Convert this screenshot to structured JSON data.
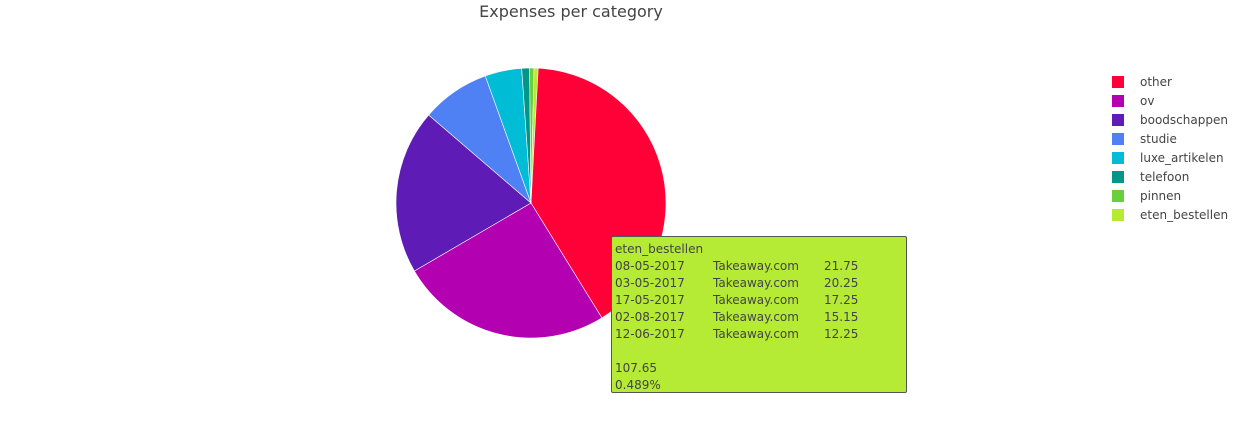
{
  "chart_data": {
    "type": "pie",
    "title": "Expenses per category",
    "series": [
      {
        "name": "other",
        "percent": 41.2,
        "color": "#ff0037"
      },
      {
        "name": "ov",
        "percent": 25.4,
        "color": "#b300b0"
      },
      {
        "name": "boodschappen",
        "percent": 19.7,
        "color": "#5e1bb5"
      },
      {
        "name": "studie",
        "percent": 8.2,
        "color": "#5081f4"
      },
      {
        "name": "luxe_artikelen",
        "percent": 4.4,
        "color": "#00bcd4"
      },
      {
        "name": "telefoon",
        "percent": 0.93,
        "color": "#009688"
      },
      {
        "name": "pinnen",
        "percent": 0.53,
        "color": "#6bce3c"
      },
      {
        "name": "eten_bestellen",
        "percent": 0.489,
        "color": "#b5ea35"
      }
    ],
    "legend_position": "right"
  },
  "tooltip": {
    "category": "eten_bestellen",
    "rows": [
      {
        "date": "08-05-2017",
        "merchant": "Takeaway.com",
        "amount": "21.75"
      },
      {
        "date": "03-05-2017",
        "merchant": "Takeaway.com",
        "amount": "20.25"
      },
      {
        "date": "17-05-2017",
        "merchant": "Takeaway.com",
        "amount": "17.25"
      },
      {
        "date": "02-08-2017",
        "merchant": "Takeaway.com",
        "amount": "15.15"
      },
      {
        "date": "12-06-2017",
        "merchant": "Takeaway.com",
        "amount": "12.25"
      }
    ],
    "total": "107.65",
    "percent": "0.489%",
    "background_color": "#b5ea35"
  }
}
